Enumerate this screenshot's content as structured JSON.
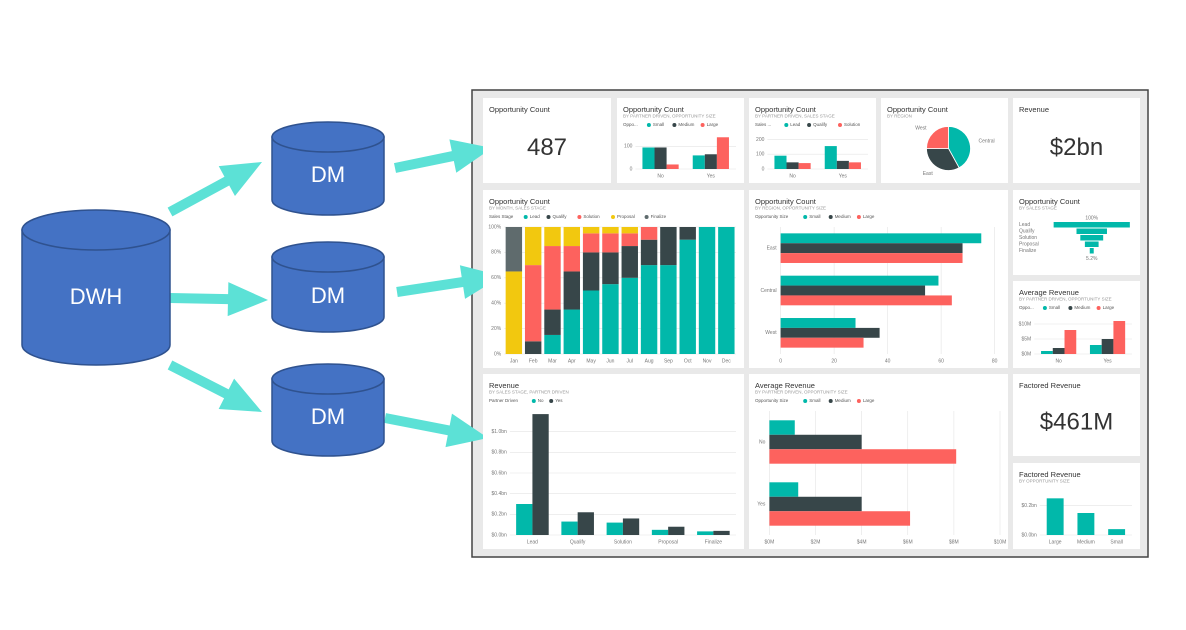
{
  "nodes": [
    {
      "label": "DWH"
    },
    {
      "label": "DM"
    },
    {
      "label": "DM"
    },
    {
      "label": "DM"
    }
  ],
  "dashboard": {
    "tiles": [
      {
        "type": "card",
        "title": "Opportunity Count",
        "value": "487"
      },
      {
        "type": "column",
        "title": "Opportunity Count",
        "subtitle": "BY PARTNER DRIVEN, OPPORTUNITY SIZE",
        "legend_title": "Oppo...",
        "categories": [
          "No",
          "Yes"
        ],
        "series": [
          {
            "name": "Small",
            "color": "#01b8aa",
            "values": [
              95,
              60
            ]
          },
          {
            "name": "Medium",
            "color": "#374649",
            "values": [
              95,
              65
            ]
          },
          {
            "name": "Large",
            "color": "#fd625e",
            "values": [
              20,
              140
            ]
          }
        ],
        "ylim": [
          0,
          150
        ],
        "yticks": [
          0,
          100
        ]
      },
      {
        "type": "column",
        "title": "Opportunity Count",
        "subtitle": "BY PARTNER DRIVEN, SALES STAGE",
        "legend_title": "Sales ...",
        "categories": [
          "No",
          "Yes"
        ],
        "series": [
          {
            "name": "Lead",
            "color": "#01b8aa",
            "values": [
              90,
              155
            ]
          },
          {
            "name": "Qualify",
            "color": "#374649",
            "values": [
              45,
              55
            ]
          },
          {
            "name": "Solution",
            "color": "#fd625e",
            "values": [
              40,
              45
            ]
          }
        ],
        "ylim": [
          0,
          230
        ],
        "yticks": [
          0,
          100,
          200
        ]
      },
      {
        "type": "pie",
        "title": "Opportunity Count",
        "subtitle": "BY REGION",
        "categories": [
          "Central",
          "East",
          "West"
        ],
        "colors": [
          "#01b8aa",
          "#374649",
          "#fd625e"
        ],
        "values": [
          42,
          33,
          25
        ]
      },
      {
        "type": "card",
        "title": "Revenue",
        "value": "$2bn"
      },
      {
        "type": "stacked100",
        "title": "Opportunity Count",
        "subtitle": "BY MONTH, SALES STAGE",
        "legend_title": "Sales Stage",
        "categories": [
          "Jan",
          "Feb",
          "Mar",
          "Apr",
          "May",
          "Jun",
          "Jul",
          "Aug",
          "Sep",
          "Oct",
          "Nov",
          "Dec"
        ],
        "series": [
          {
            "name": "Lead",
            "color": "#01b8aa",
            "values": [
              0,
              0,
              15,
              35,
              50,
              55,
              60,
              70,
              70,
              90,
              100,
              100
            ]
          },
          {
            "name": "Qualify",
            "color": "#374649",
            "values": [
              0,
              10,
              20,
              30,
              30,
              25,
              25,
              20,
              30,
              10,
              0,
              0
            ]
          },
          {
            "name": "Solution",
            "color": "#fd625e",
            "values": [
              0,
              60,
              50,
              20,
              15,
              15,
              10,
              10,
              0,
              0,
              0,
              0
            ]
          },
          {
            "name": "Proposal",
            "color": "#f2c80f",
            "values": [
              65,
              30,
              15,
              15,
              5,
              5,
              5,
              0,
              0,
              0,
              0,
              0
            ]
          },
          {
            "name": "Finalize",
            "color": "#5f6b6d",
            "values": [
              35,
              0,
              0,
              0,
              0,
              0,
              0,
              0,
              0,
              0,
              0,
              0
            ]
          }
        ],
        "ylim": [
          0,
          100
        ],
        "yticks": [
          {
            "value": 0,
            "label": "0%"
          },
          {
            "value": 20,
            "label": "20%"
          },
          {
            "value": 40,
            "label": "40%"
          },
          {
            "value": 60,
            "label": "60%"
          },
          {
            "value": 80,
            "label": "80%"
          },
          {
            "value": 100,
            "label": "100%"
          }
        ]
      },
      {
        "type": "hbar",
        "title": "Opportunity Count",
        "subtitle": "BY REGION, OPPORTUNITY SIZE",
        "legend_title": "Opportunity Size",
        "categories": [
          "East",
          "Central",
          "West"
        ],
        "series": [
          {
            "name": "Small",
            "color": "#01b8aa",
            "values": [
              75,
              59,
              28
            ]
          },
          {
            "name": "Medium",
            "color": "#374649",
            "values": [
              68,
              54,
              37
            ]
          },
          {
            "name": "Large",
            "color": "#fd625e",
            "values": [
              68,
              64,
              31
            ]
          }
        ],
        "xlim": [
          0,
          82
        ],
        "xticks": [
          0,
          20,
          40,
          60,
          80
        ]
      },
      {
        "type": "funnel",
        "title": "Opportunity Count",
        "subtitle": "BY SALES STAGE",
        "categories": [
          "Lead",
          "Qualify",
          "Solution",
          "Proposal",
          "Finalize"
        ],
        "color": "#01b8aa",
        "values": [
          100,
          40,
          30,
          18,
          5.2
        ],
        "top_label": "100%",
        "bottom_label": "5.2%"
      },
      {
        "type": "column",
        "title": "Average Revenue",
        "subtitle": "BY PARTNER DRIVEN, OPPORTUNITY SIZE",
        "legend_title": "Oppo...",
        "categories": [
          "No",
          "Yes"
        ],
        "series": [
          {
            "name": "Small",
            "color": "#01b8aa",
            "values": [
              1,
              3
            ]
          },
          {
            "name": "Medium",
            "color": "#374649",
            "values": [
              2,
              5
            ]
          },
          {
            "name": "Large",
            "color": "#fd625e",
            "values": [
              8,
              11
            ]
          }
        ],
        "ylim": [
          0,
          12
        ],
        "yticks": [
          {
            "value": 0,
            "label": "$0M"
          },
          {
            "value": 5,
            "label": "$5M"
          },
          {
            "value": 10,
            "label": "$10M"
          }
        ]
      },
      {
        "type": "card",
        "title": "Factored Revenue",
        "value": "$461M"
      },
      {
        "type": "column",
        "title": "Factored Revenue",
        "subtitle": "BY OPPORTUNITY SIZE",
        "categories": [
          "Large",
          "Medium",
          "Small"
        ],
        "series": [
          {
            "name": "Factored Revenue",
            "color": "#01b8aa",
            "values": [
              0.25,
              0.15,
              0.04
            ]
          }
        ],
        "ylim": [
          0,
          0.3
        ],
        "yticks": [
          {
            "value": 0,
            "label": "$0.0bn"
          },
          {
            "value": 0.2,
            "label": "$0.2bn"
          }
        ]
      },
      {
        "type": "column",
        "title": "Revenue",
        "subtitle": "BY SALES STAGE, PARTNER DRIVEN",
        "legend_title": "Partner Driven",
        "categories": [
          "Lead",
          "Qualify",
          "Solution",
          "Proposal",
          "Finalize"
        ],
        "series": [
          {
            "name": "No",
            "color": "#01b8aa",
            "values": [
              0.3,
              0.13,
              0.12,
              0.05,
              0.035
            ]
          },
          {
            "name": "Yes",
            "color": "#374649",
            "values": [
              1.17,
              0.22,
              0.16,
              0.08,
              0.04
            ]
          }
        ],
        "ylim": [
          0,
          1.2
        ],
        "yticks": [
          {
            "value": 0,
            "label": "$0.0bn"
          },
          {
            "value": 0.2,
            "label": "$0.2bn"
          },
          {
            "value": 0.4,
            "label": "$0.4bn"
          },
          {
            "value": 0.6,
            "label": "$0.6bn"
          },
          {
            "value": 0.8,
            "label": "$0.8bn"
          },
          {
            "value": 1.0,
            "label": "$1.0bn"
          }
        ]
      },
      {
        "type": "hbar",
        "title": "Average Revenue",
        "subtitle": "BY PARTNER DRIVEN, OPPORTUNITY SIZE",
        "legend_title": "Opportunity Size",
        "categories": [
          "No",
          "Yes"
        ],
        "series": [
          {
            "name": "Small",
            "color": "#01b8aa",
            "values": [
              1.1,
              1.25
            ]
          },
          {
            "name": "Medium",
            "color": "#374649",
            "values": [
              4.0,
              4.0
            ]
          },
          {
            "name": "Large",
            "color": "#fd625e",
            "values": [
              8.1,
              6.1
            ]
          }
        ],
        "xlim": [
          0,
          10
        ],
        "xticks": [
          {
            "value": 0,
            "label": "$0M"
          },
          {
            "value": 2,
            "label": "$2M"
          },
          {
            "value": 4,
            "label": "$4M"
          },
          {
            "value": 6,
            "label": "$6M"
          },
          {
            "value": 8,
            "label": "$8M"
          },
          {
            "value": 10,
            "label": "$10M"
          }
        ]
      }
    ]
  }
}
